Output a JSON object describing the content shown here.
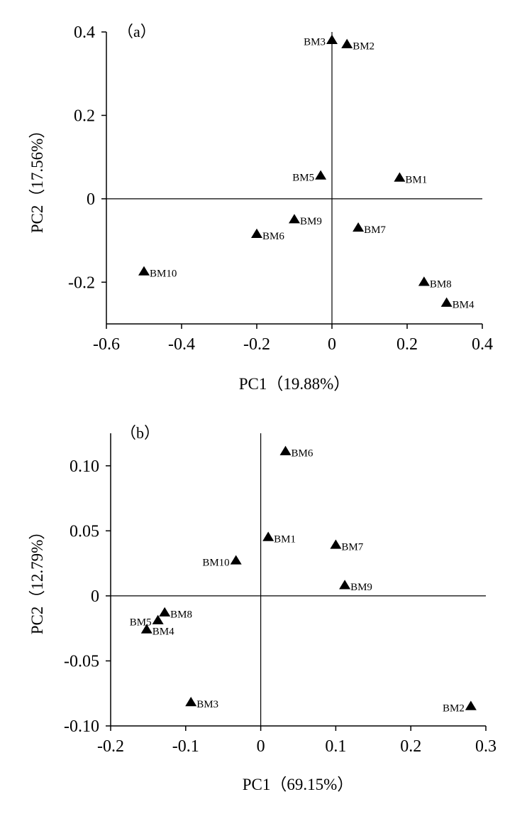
{
  "chart_data": [
    {
      "type": "scatter",
      "panel_label": "（a）",
      "xlabel": "PC1（19.88%）",
      "ylabel": "PC2（17.56%）",
      "xlim": [
        -0.6,
        0.4
      ],
      "ylim": [
        -0.3,
        0.4
      ],
      "xticks": [
        -0.6,
        -0.4,
        -0.2,
        0,
        0.2,
        0.4
      ],
      "xtick_labels": [
        "-0.6",
        "-0.4",
        "-0.2",
        "0",
        "0.2",
        "0.4"
      ],
      "yticks": [
        0.4,
        0.2,
        0,
        -0.2
      ],
      "ytick_labels": [
        "0.4",
        "0.2",
        "0",
        "-0.2"
      ],
      "grid": false,
      "marker": "triangle",
      "points": [
        {
          "label": "BM1",
          "x": 0.18,
          "y": 0.05,
          "label_pos": "right"
        },
        {
          "label": "BM2",
          "x": 0.04,
          "y": 0.37,
          "label_pos": "right"
        },
        {
          "label": "BM3",
          "x": 0.0,
          "y": 0.38,
          "label_pos": "left"
        },
        {
          "label": "BM4",
          "x": 0.305,
          "y": -0.25,
          "label_pos": "right"
        },
        {
          "label": "BM5",
          "x": -0.03,
          "y": 0.055,
          "label_pos": "left"
        },
        {
          "label": "BM6",
          "x": -0.2,
          "y": -0.085,
          "label_pos": "right"
        },
        {
          "label": "BM7",
          "x": 0.07,
          "y": -0.07,
          "label_pos": "right"
        },
        {
          "label": "BM8",
          "x": 0.245,
          "y": -0.2,
          "label_pos": "right"
        },
        {
          "label": "BM9",
          "x": -0.1,
          "y": -0.05,
          "label_pos": "right"
        },
        {
          "label": "BM10",
          "x": -0.5,
          "y": -0.175,
          "label_pos": "right"
        }
      ]
    },
    {
      "type": "scatter",
      "panel_label": "（b）",
      "xlabel": "PC1（69.15%）",
      "ylabel": "PC2（12.79%）",
      "xlim": [
        -0.2,
        0.3
      ],
      "ylim": [
        -0.1,
        0.125
      ],
      "xticks": [
        -0.2,
        -0.1,
        0,
        0.1,
        0.2,
        0.3
      ],
      "xtick_labels": [
        "-0.2",
        "-0.1",
        "0",
        "0.1",
        "0.2",
        "0.3"
      ],
      "yticks": [
        0.1,
        0.05,
        0,
        -0.05,
        -0.1
      ],
      "ytick_labels": [
        "0.10",
        "0.05",
        "0",
        "-0.05",
        "-0.10"
      ],
      "grid": false,
      "marker": "triangle",
      "points": [
        {
          "label": "BM1",
          "x": 0.01,
          "y": 0.045,
          "label_pos": "right"
        },
        {
          "label": "BM2",
          "x": 0.28,
          "y": -0.085,
          "label_pos": "left"
        },
        {
          "label": "BM3",
          "x": -0.093,
          "y": -0.082,
          "label_pos": "right"
        },
        {
          "label": "BM4",
          "x": -0.152,
          "y": -0.026,
          "label_pos": "right"
        },
        {
          "label": "BM5",
          "x": -0.137,
          "y": -0.019,
          "label_pos": "left"
        },
        {
          "label": "BM6",
          "x": 0.033,
          "y": 0.111,
          "label_pos": "right"
        },
        {
          "label": "BM7",
          "x": 0.1,
          "y": 0.039,
          "label_pos": "right"
        },
        {
          "label": "BM8",
          "x": -0.128,
          "y": -0.013,
          "label_pos": "right"
        },
        {
          "label": "BM9",
          "x": 0.112,
          "y": 0.008,
          "label_pos": "right"
        },
        {
          "label": "BM10",
          "x": -0.033,
          "y": 0.027,
          "label_pos": "left"
        }
      ]
    }
  ]
}
